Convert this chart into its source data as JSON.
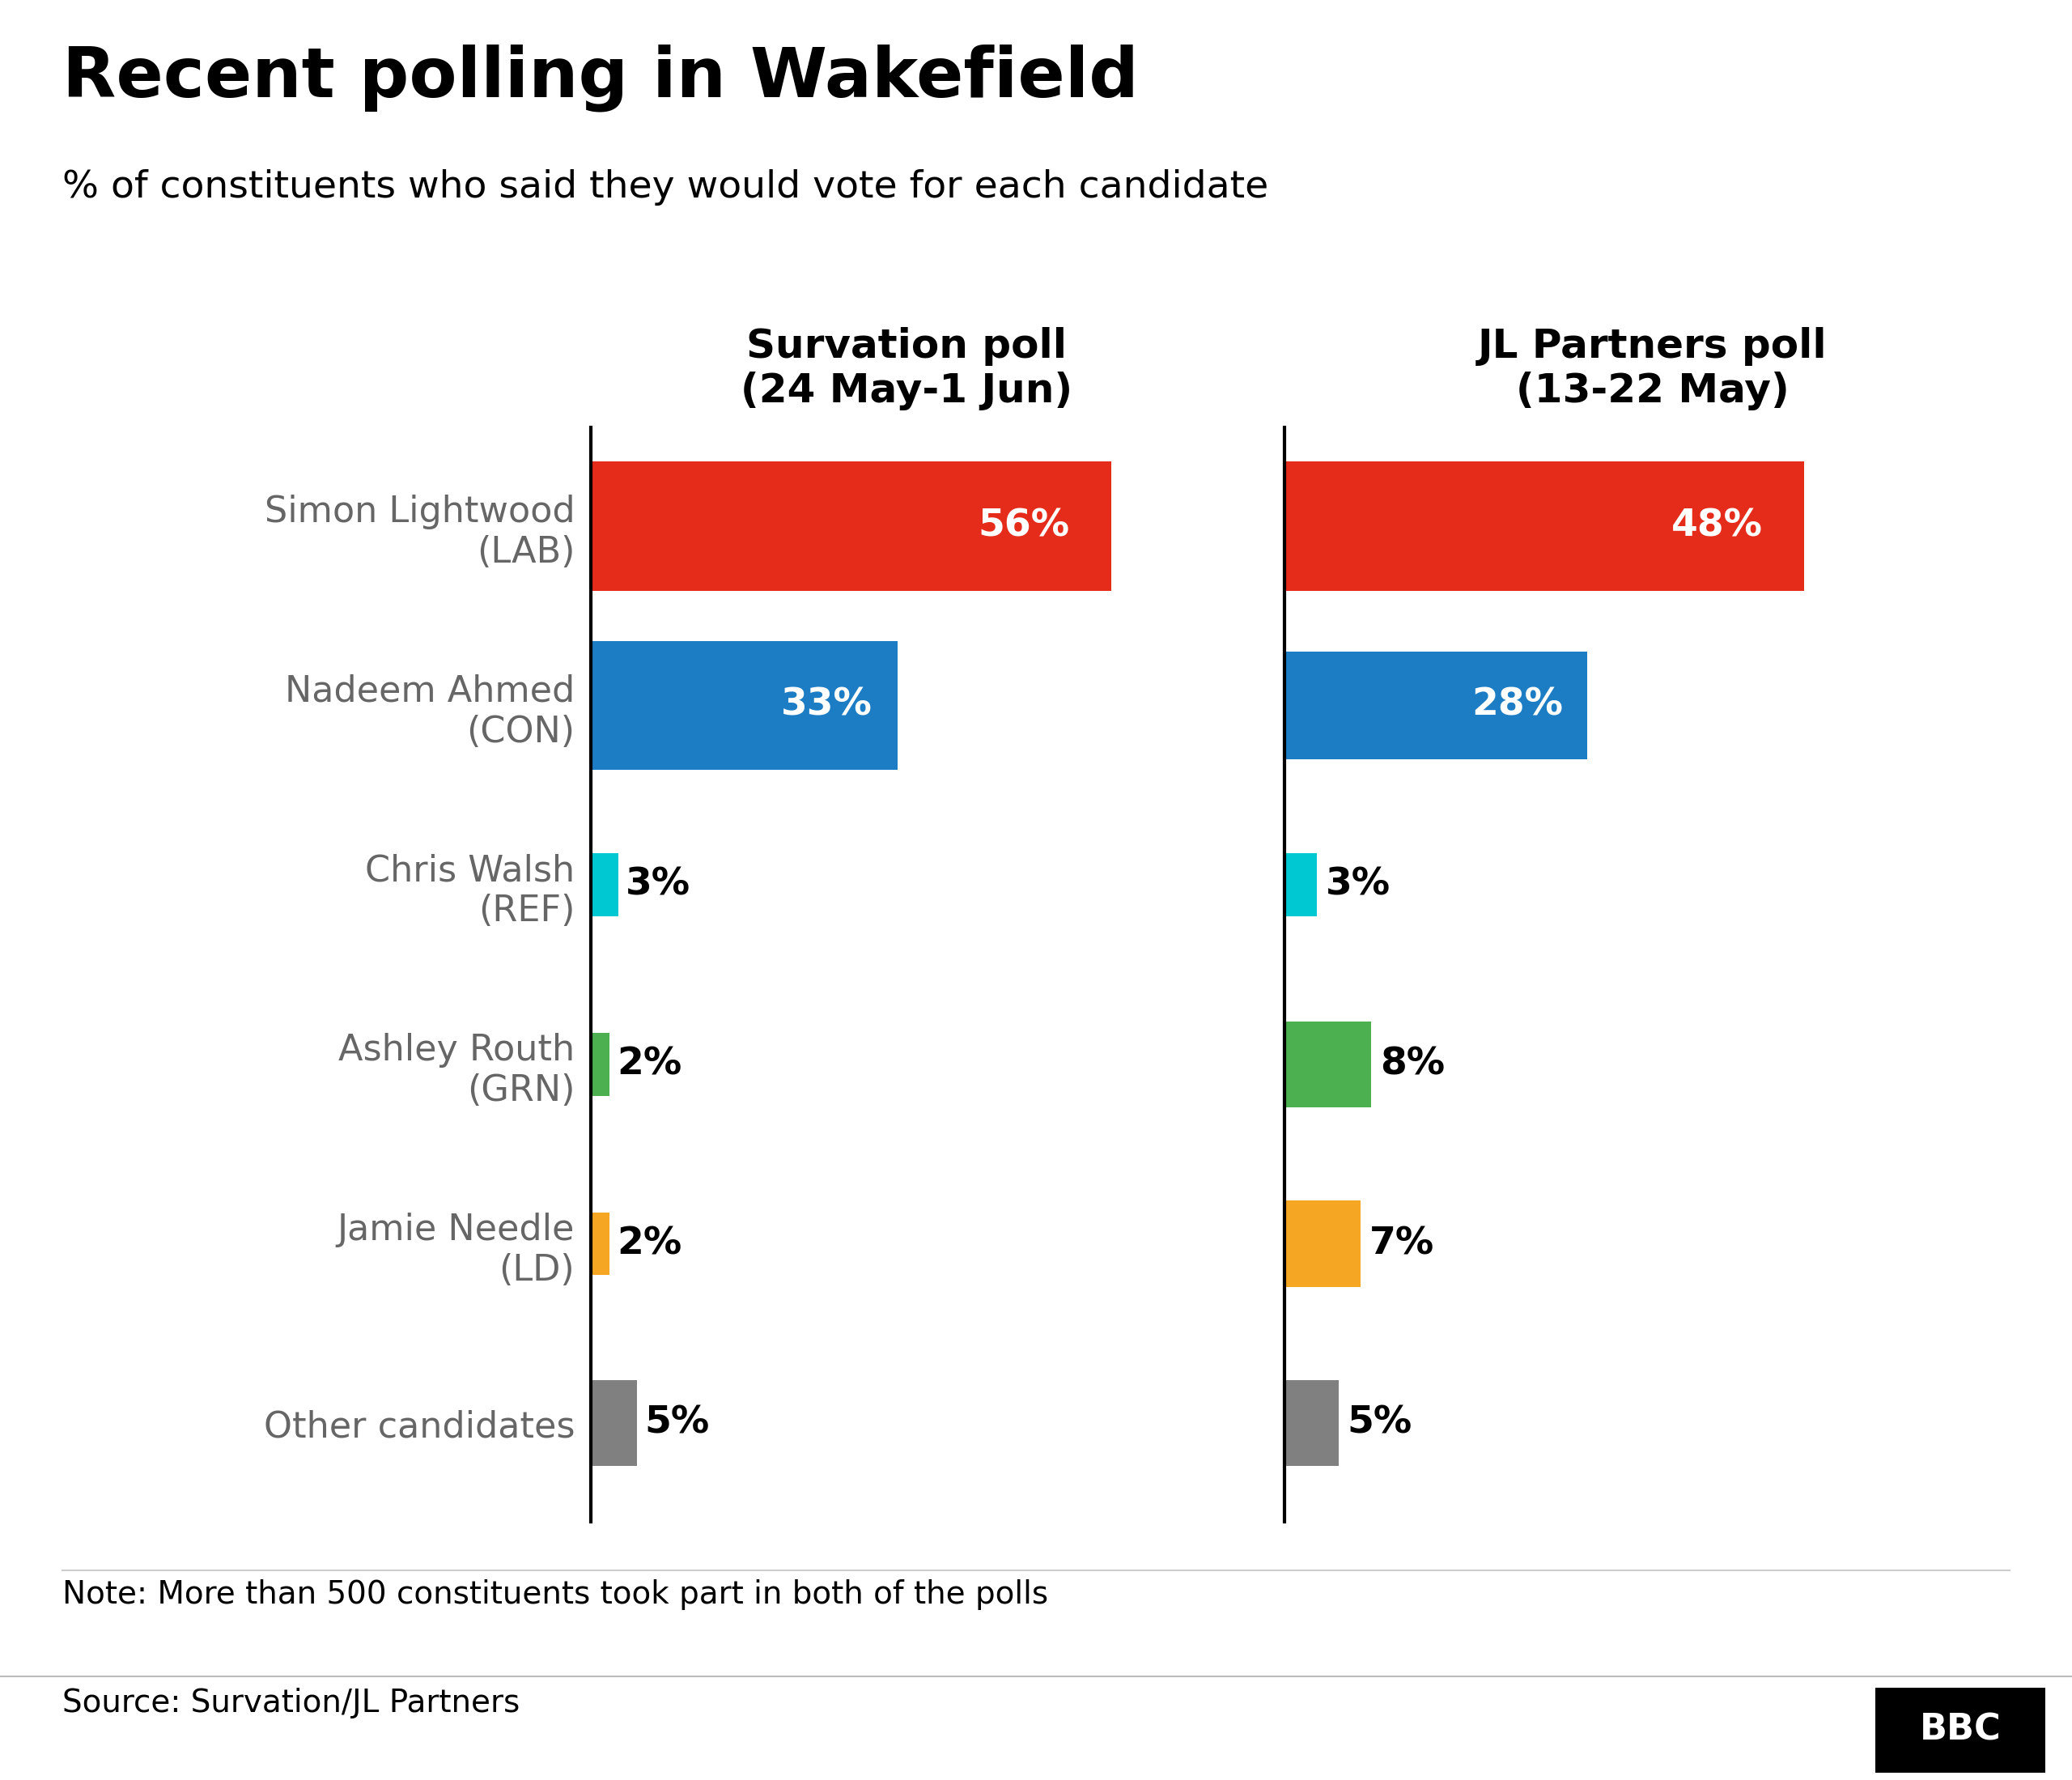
{
  "title": "Recent polling in Wakefield",
  "subtitle": "% of constituents who said they would vote for each candidate",
  "poll1_title": "Survation poll\n(24 May-1 Jun)",
  "poll2_title": "JL Partners poll\n(13-22 May)",
  "candidates": [
    "Simon Lightwood\n(LAB)",
    "Nadeem Ahmed\n(CON)",
    "Chris Walsh\n(REF)",
    "Ashley Routh\n(GRN)",
    "Jamie Needle\n(LD)",
    "Other candidates"
  ],
  "poll1_values": [
    56,
    33,
    3,
    2,
    2,
    5
  ],
  "poll2_values": [
    48,
    28,
    3,
    8,
    7,
    5
  ],
  "bar_colors": [
    "#e52b1a",
    "#1c7dc4",
    "#00c8d2",
    "#4caf50",
    "#f5a623",
    "#808080"
  ],
  "label_colors_inside": [
    "white",
    "white"
  ],
  "note": "Note: More than 500 constituents took part in both of the polls",
  "source": "Source: Survation/JL Partners",
  "background_color": "#ffffff",
  "ylabel_color": "#666666",
  "title_fontsize": 62,
  "subtitle_fontsize": 34,
  "poll_title_fontsize": 36,
  "ylabel_fontsize": 32,
  "bar_label_fontsize": 34,
  "note_fontsize": 28,
  "source_fontsize": 28
}
